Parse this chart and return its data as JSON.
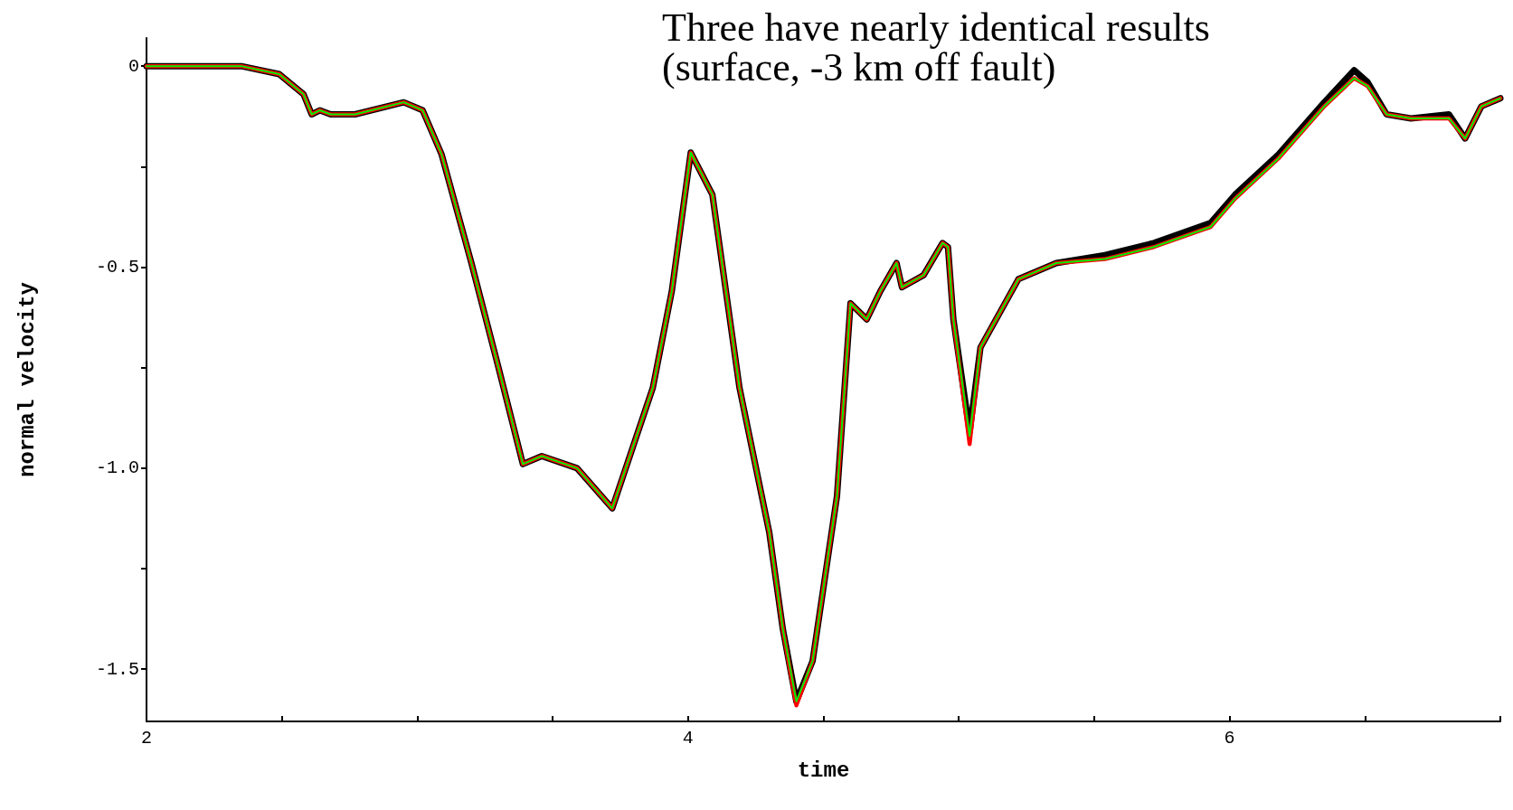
{
  "chart_data": {
    "type": "line",
    "xlabel": "time",
    "ylabel": "normal velocity",
    "annotations": [
      "Three have nearly identical results",
      "(surface, -3 km off fault)"
    ],
    "x": [
      2,
      2.35,
      2.49,
      2.58,
      2.61,
      2.64,
      2.68,
      2.77,
      2.95,
      3.02,
      3.09,
      3.2,
      3.3,
      3.39,
      3.46,
      3.59,
      3.72,
      3.8,
      3.87,
      3.94,
      4.01,
      4.09,
      4.19,
      4.3,
      4.35,
      4.4,
      4.46,
      4.55,
      4.6,
      4.66,
      4.71,
      4.77,
      4.79,
      4.87,
      4.94,
      4.96,
      4.98,
      5.04,
      5.08,
      5.22,
      5.36,
      5.54,
      5.72,
      5.93,
      6.02,
      6.18,
      6.35,
      6.46,
      6.51,
      6.58,
      6.67,
      6.81,
      6.87,
      6.93,
      7
    ],
    "series": [
      {
        "color": "#000000",
        "values": [
          0,
          0,
          -0.02,
          -0.07,
          -0.12,
          -0.11,
          -0.12,
          -0.12,
          -0.09,
          -0.11,
          -0.22,
          -0.49,
          -0.75,
          -0.99,
          -0.97,
          -1,
          -1.1,
          -0.94,
          -0.8,
          -0.56,
          -0.215,
          -0.32,
          -0.8,
          -1.16,
          -1.4,
          -1.58,
          -1.48,
          -1.07,
          -0.59,
          -0.63,
          -0.56,
          -0.49,
          -0.55,
          -0.52,
          -0.44,
          -0.45,
          -0.63,
          -0.91,
          -0.7,
          -0.53,
          -0.49,
          -0.47,
          -0.44,
          -0.39,
          -0.32,
          -0.22,
          -0.09,
          -0.01,
          -0.04,
          -0.12,
          -0.13,
          -0.12,
          -0.18,
          -0.1,
          -0.08
        ]
      },
      {
        "color": "#ff0000",
        "values": [
          0,
          0,
          -0.02,
          -0.07,
          -0.12,
          -0.11,
          -0.12,
          -0.12,
          -0.09,
          -0.11,
          -0.22,
          -0.49,
          -0.75,
          -0.99,
          -0.97,
          -1,
          -1.1,
          -0.94,
          -0.8,
          -0.56,
          -0.215,
          -0.32,
          -0.8,
          -1.16,
          -1.4,
          -1.59,
          -1.48,
          -1.07,
          -0.59,
          -0.63,
          -0.56,
          -0.49,
          -0.55,
          -0.52,
          -0.44,
          -0.45,
          -0.63,
          -0.94,
          -0.7,
          -0.53,
          -0.49,
          -0.48,
          -0.45,
          -0.4,
          -0.33,
          -0.23,
          -0.1,
          -0.03,
          -0.05,
          -0.12,
          -0.13,
          -0.13,
          -0.18,
          -0.1,
          -0.08
        ]
      },
      {
        "color": "#00ee00",
        "values": [
          0,
          0,
          -0.02,
          -0.07,
          -0.12,
          -0.11,
          -0.12,
          -0.12,
          -0.09,
          -0.11,
          -0.22,
          -0.49,
          -0.75,
          -0.99,
          -0.97,
          -1,
          -1.1,
          -0.94,
          -0.8,
          -0.56,
          -0.215,
          -0.32,
          -0.8,
          -1.16,
          -1.4,
          -1.58,
          -1.48,
          -1.07,
          -0.59,
          -0.63,
          -0.56,
          -0.49,
          -0.55,
          -0.52,
          -0.44,
          -0.45,
          -0.63,
          -0.92,
          -0.7,
          -0.53,
          -0.49,
          -0.48,
          -0.45,
          -0.4,
          -0.33,
          -0.23,
          -0.1,
          -0.03,
          -0.05,
          -0.12,
          -0.13,
          -0.13,
          -0.18,
          -0.1,
          -0.08
        ]
      }
    ],
    "xlim": [
      2,
      7
    ],
    "xticks": [
      2,
      {
        "value": 2.5,
        "label": null
      },
      {
        "value": 3,
        "label": null
      },
      {
        "value": 3.5,
        "label": null
      },
      4,
      {
        "value": 4.5,
        "label": null
      },
      {
        "value": 5,
        "label": null
      },
      {
        "value": 5.5,
        "label": null
      },
      6,
      {
        "value": 6.5,
        "label": null
      },
      {
        "value": 7,
        "label": null
      }
    ],
    "ylim": [
      -1.63,
      0.07
    ],
    "yticks": [
      {
        "value": 0,
        "label": "0"
      },
      {
        "value": -0.25,
        "label": null
      },
      {
        "value": -0.5,
        "label": "-0.5"
      },
      {
        "value": -0.75,
        "label": null
      },
      {
        "value": -1,
        "label": "-1.0"
      },
      {
        "value": -1.25,
        "label": null
      },
      {
        "value": -1.5,
        "label": "-1.5"
      }
    ],
    "grid": false,
    "marker": "none",
    "line_style": "solid"
  }
}
